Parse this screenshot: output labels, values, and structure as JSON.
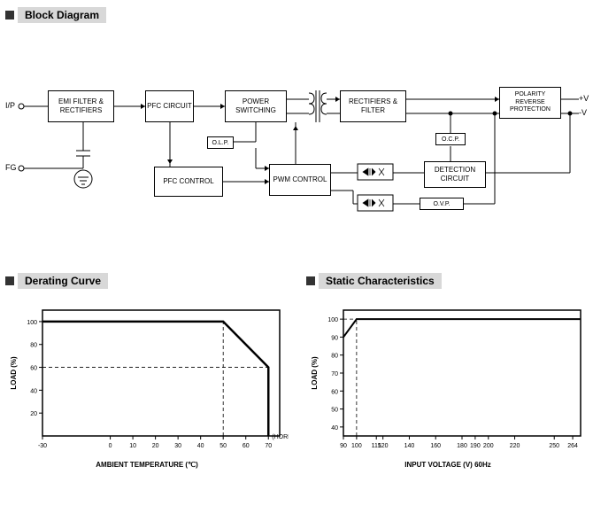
{
  "sections": {
    "block": "Block Diagram",
    "derating": "Derating Curve",
    "static": "Static Characteristics"
  },
  "diagram": {
    "io_labels": {
      "ip": "I/P",
      "fg": "FG",
      "pv": "+V",
      "nv": "-V"
    },
    "blocks": {
      "emi": "EMI FILTER\n&\nRECTIFIERS",
      "pfc_circuit": "PFC\nCIRCUIT",
      "power_sw": "POWER\nSWITCHING",
      "rect_filter": "RECTIFIERS\n&\nFILTER",
      "polarity": "POLARITY\nREVERSE\nPROTECTION",
      "pfc_control": "PFC\nCONTROL",
      "pwm": "PWM\nCONTROL",
      "detection": "DETECTION\nCIRCUIT",
      "olp": "O.L.P.",
      "ocp": "O.C.P.",
      "ovp": "O.V.P."
    }
  },
  "derating_chart": {
    "type": "line",
    "xlabel": "AMBIENT TEMPERATURE (℃)",
    "ylabel": "LOAD (%)",
    "x_ticks": [
      -30,
      0,
      10,
      20,
      30,
      40,
      50,
      60,
      70
    ],
    "y_ticks": [
      20,
      40,
      60,
      80,
      100
    ],
    "xlim": [
      -30,
      75
    ],
    "ylim": [
      0,
      110
    ],
    "line_color": "#000000",
    "line_width": 2.5,
    "points": [
      [
        -30,
        100
      ],
      [
        50,
        100
      ],
      [
        70,
        60
      ],
      [
        70,
        0
      ]
    ],
    "dashed_lines": [
      {
        "from": [
          -30,
          60
        ],
        "to": [
          70,
          60
        ]
      },
      {
        "from": [
          50,
          0
        ],
        "to": [
          50,
          100
        ]
      }
    ],
    "annotation": "(HORIZONTAL)",
    "background": "#ffffff",
    "axis_color": "#000000",
    "tick_fontsize": 7
  },
  "static_chart": {
    "type": "line",
    "xlabel": "INPUT VOLTAGE (V) 60Hz",
    "ylabel": "LOAD (%)",
    "x_ticks": [
      90,
      100,
      115,
      120,
      140,
      160,
      180,
      190,
      200,
      220,
      250,
      264
    ],
    "y_ticks": [
      40,
      50,
      60,
      70,
      80,
      90,
      100
    ],
    "xlim": [
      90,
      270
    ],
    "ylim": [
      35,
      105
    ],
    "line_color": "#000000",
    "line_width": 2,
    "points": [
      [
        90,
        90
      ],
      [
        100,
        100
      ],
      [
        270,
        100
      ]
    ],
    "dashed_lines": [
      {
        "from": [
          90,
          100
        ],
        "to": [
          100,
          100
        ]
      },
      {
        "from": [
          100,
          35
        ],
        "to": [
          100,
          100
        ]
      }
    ],
    "background": "#ffffff",
    "axis_color": "#000000",
    "tick_fontsize": 7
  }
}
